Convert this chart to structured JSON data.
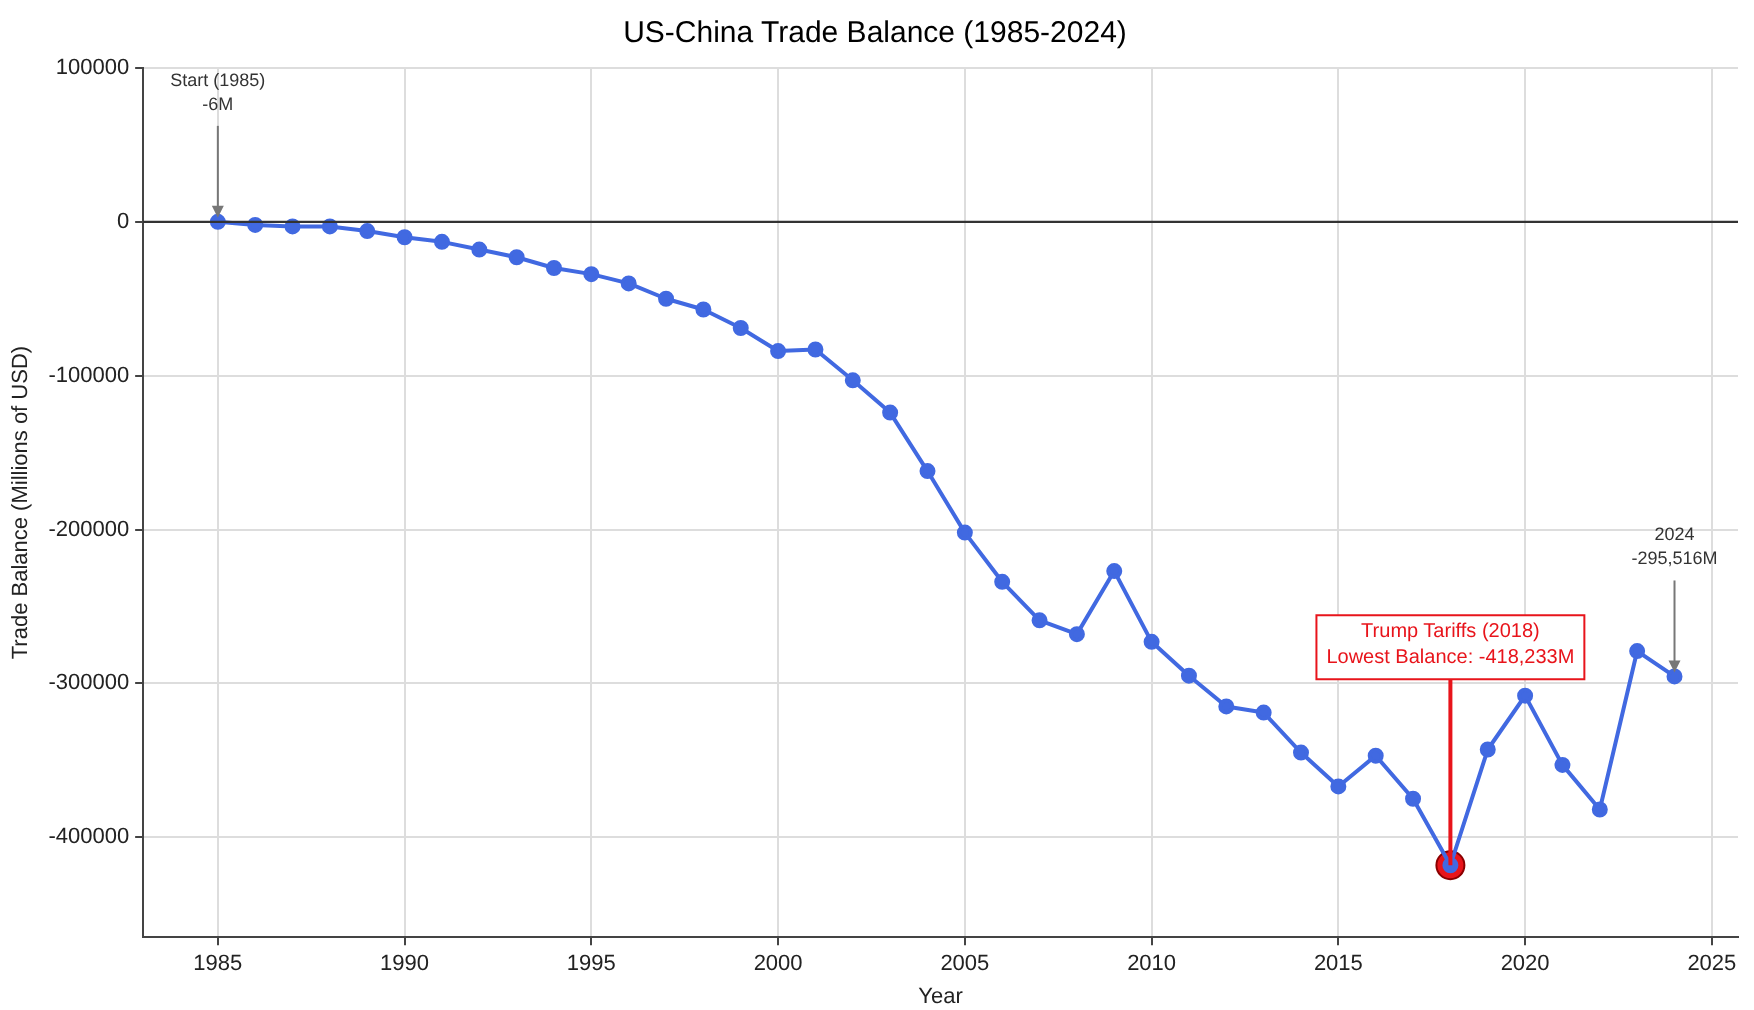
{
  "chart_data": {
    "type": "line",
    "title": "US-China Trade Balance (1985-2024)",
    "xlabel": "Year",
    "ylabel": "Trade Balance (Millions of USD)",
    "x": [
      1985,
      1986,
      1987,
      1988,
      1989,
      1990,
      1991,
      1992,
      1993,
      1994,
      1995,
      1996,
      1997,
      1998,
      1999,
      2000,
      2001,
      2002,
      2003,
      2004,
      2005,
      2006,
      2007,
      2008,
      2009,
      2010,
      2011,
      2012,
      2013,
      2014,
      2015,
      2016,
      2017,
      2018,
      2019,
      2020,
      2021,
      2022,
      2023,
      2024
    ],
    "series": [
      {
        "color": "#4169e1",
        "values": [
          -6,
          -2000,
          -3000,
          -3000,
          -6000,
          -10000,
          -13000,
          -18000,
          -23000,
          -30000,
          -34000,
          -40000,
          -50000,
          -57000,
          -69000,
          -84000,
          -83000,
          -103000,
          -124000,
          -162000,
          -202000,
          -234000,
          -259000,
          -268000,
          -227000,
          -273000,
          -295000,
          -315000,
          -319000,
          -345000,
          -367000,
          -347000,
          -375000,
          -418233,
          -343000,
          -308000,
          -353000,
          -382000,
          -279000,
          -295516
        ]
      },
      {
        "type": "scatter",
        "color": "#e8141b",
        "x": [
          2018
        ],
        "values": [
          -418233
        ]
      }
    ],
    "xlim": [
      1983,
      2025.7
    ],
    "xticks": [
      1985,
      1990,
      1995,
      2000,
      2005,
      2010,
      2015,
      2020,
      2025
    ],
    "ylim": [
      -465000,
      100000
    ],
    "yticks": [
      -400000,
      -300000,
      -200000,
      -100000,
      0,
      100000
    ],
    "grid": true,
    "marker": "circle",
    "line_style": "solid",
    "ref_lines": [
      {
        "axis": "y",
        "value": 0,
        "color": "#333333"
      }
    ],
    "annotations": [
      {
        "text": "Start (1985)\n-6M",
        "x": 1985,
        "y": -6
      },
      {
        "text": "2024\n-295,516M",
        "x": 2024,
        "y": -295516
      },
      {
        "text": "Trump Tariffs (2018)\nLowest Balance: -418,233M",
        "x": 2018,
        "y": -418233
      }
    ]
  }
}
